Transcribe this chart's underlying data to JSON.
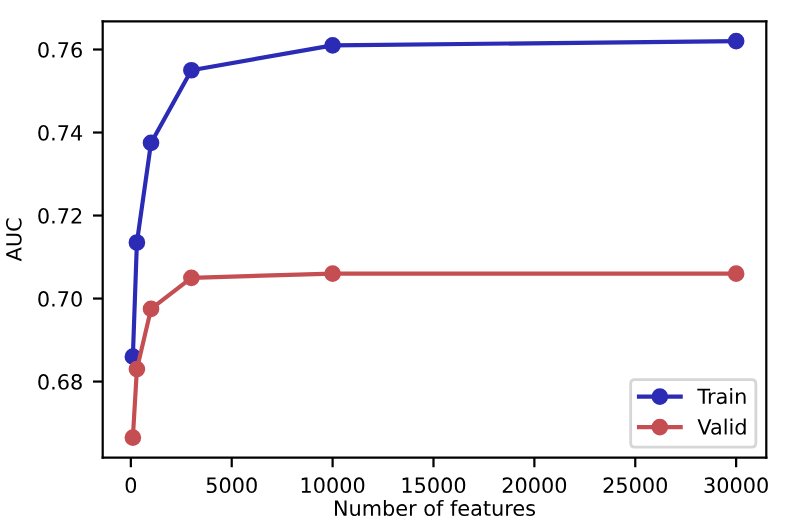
{
  "chart_data": {
    "type": "line",
    "xlabel": "Number of features",
    "ylabel": "AUC",
    "x": [
      100,
      300,
      1000,
      3000,
      10000,
      30000
    ],
    "series": [
      {
        "name": "Train",
        "color": "#2b2bb5",
        "values": [
          0.686,
          0.7135,
          0.7375,
          0.755,
          0.761,
          0.762
        ]
      },
      {
        "name": "Valid",
        "color": "#c44e52",
        "values": [
          0.6665,
          0.683,
          0.6975,
          0.705,
          0.706,
          0.706
        ]
      }
    ],
    "xlim": [
      -1395,
      31495
    ],
    "xticks": [
      0,
      5000,
      10000,
      15000,
      20000,
      25000,
      30000
    ],
    "ylim": [
      0.6617,
      0.7668
    ],
    "yticks": [
      {
        "value": 0.68,
        "label": "0.68"
      },
      {
        "value": 0.7,
        "label": "0.70"
      },
      {
        "value": 0.72,
        "label": "0.72"
      },
      {
        "value": 0.74,
        "label": "0.74"
      },
      {
        "value": 0.76,
        "label": "0.76"
      }
    ],
    "marker": "circle",
    "line_style": "solid",
    "legend": "bottom right",
    "grid": false
  }
}
